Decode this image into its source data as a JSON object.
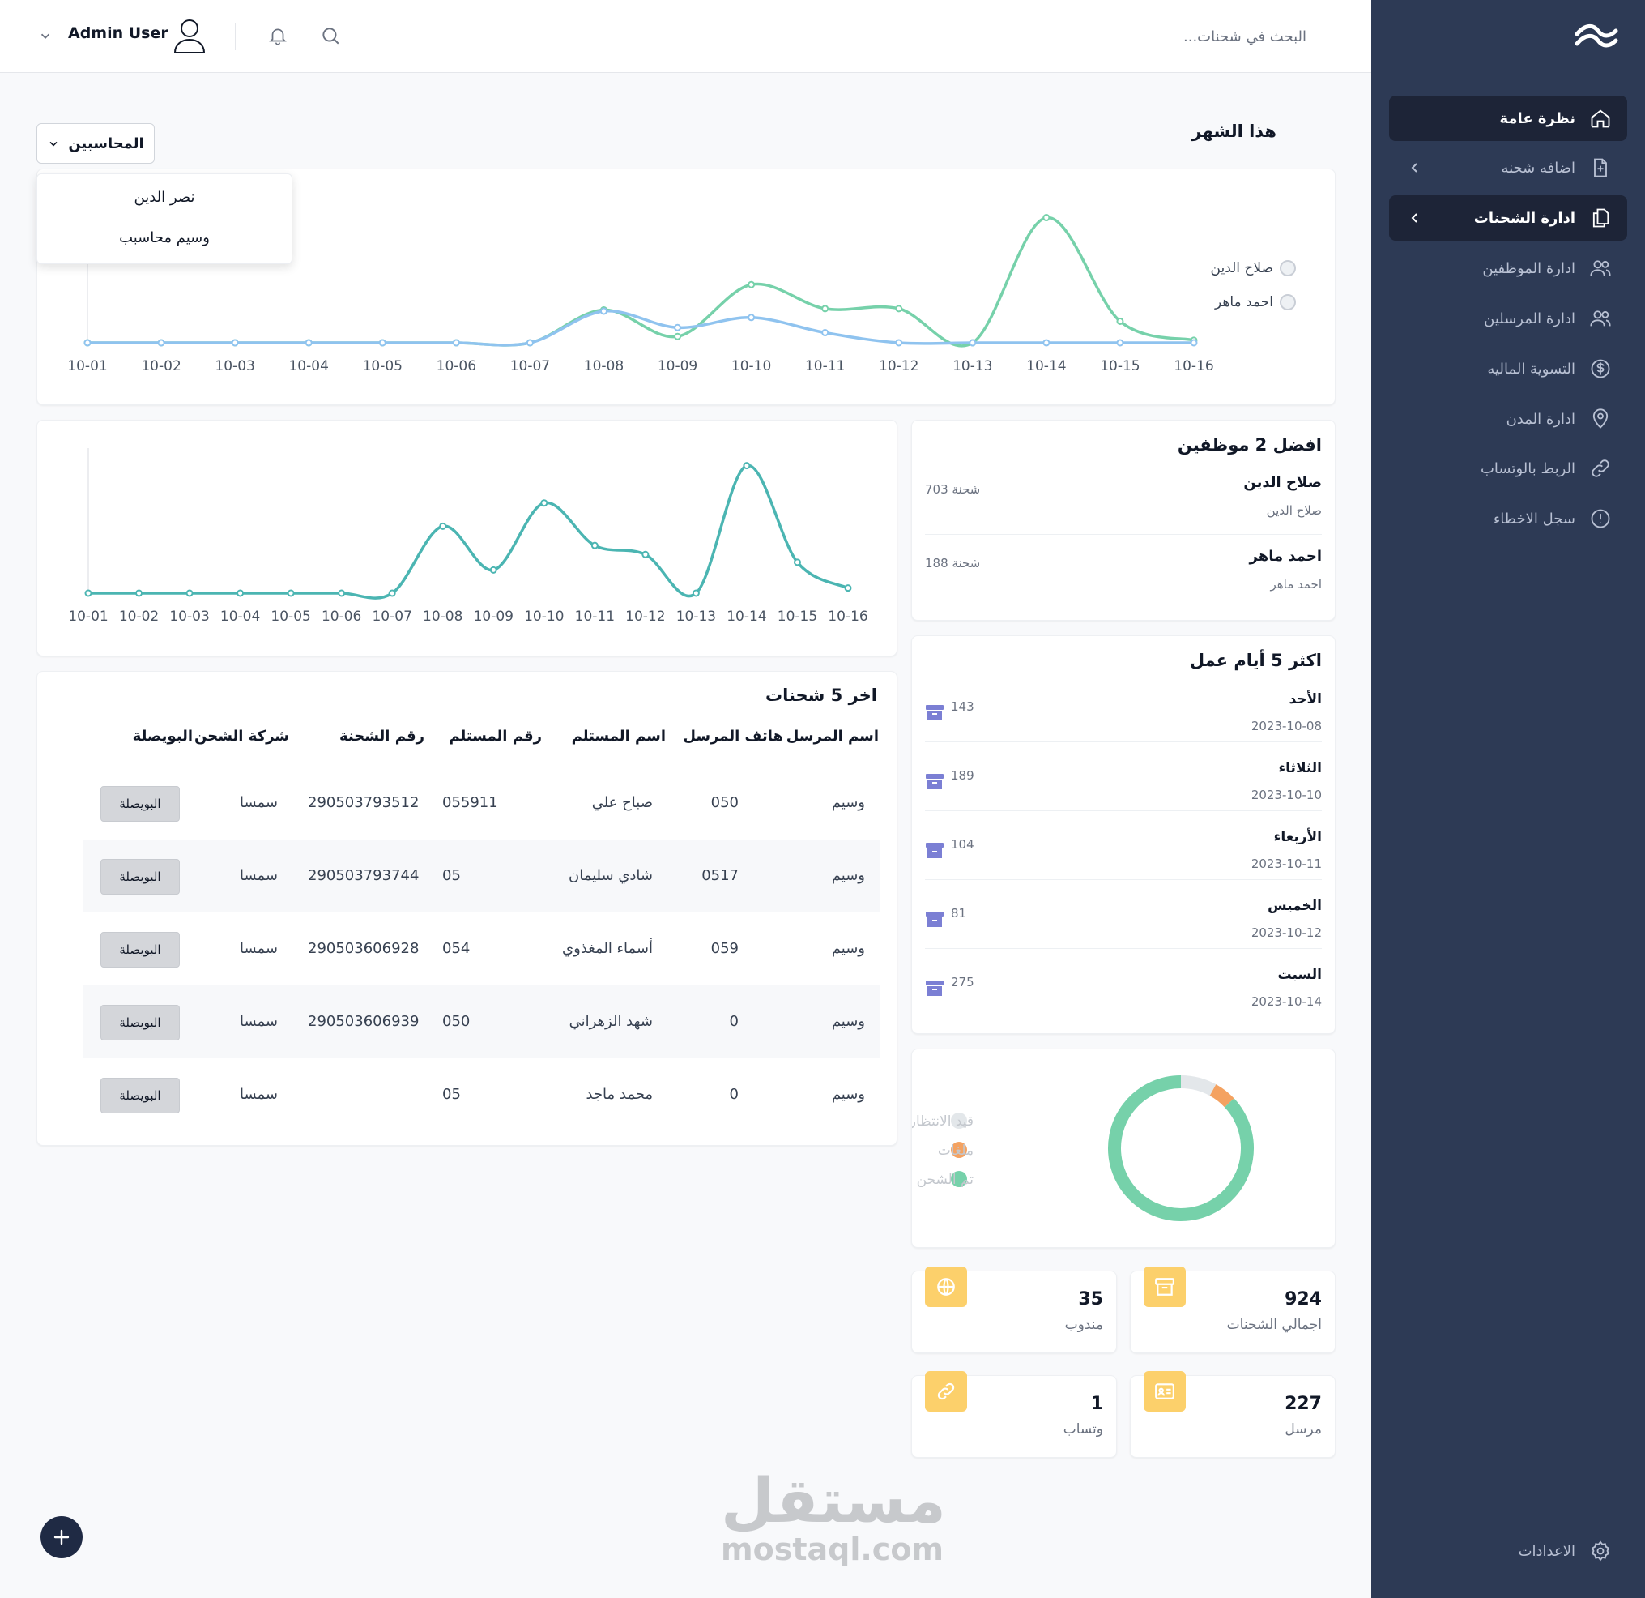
{
  "topbar": {
    "search_placeholder": "البحث في شحنات...",
    "user_name": "Admin User"
  },
  "sidebar": {
    "items": [
      {
        "label": "نظرة عامة",
        "icon": "home-icon",
        "active": true
      },
      {
        "label": "اضافه شحنه",
        "icon": "file-plus-icon"
      },
      {
        "label": "ادارة الشحنات",
        "icon": "documents-icon",
        "active": true
      },
      {
        "label": "ادارة الموظفين",
        "icon": "users-icon"
      },
      {
        "label": "ادارة المرسلين",
        "icon": "users-icon"
      },
      {
        "label": "التسوية الماليه",
        "icon": "dollar-icon"
      },
      {
        "label": "ادارة المدن",
        "icon": "location-icon"
      },
      {
        "label": "الربط بالوتساب",
        "icon": "link-icon"
      },
      {
        "label": "سجل الاخطاء",
        "icon": "alert-icon"
      }
    ],
    "settings_label": "الاعدادات"
  },
  "overview": {
    "section_title": "هذا الشهر",
    "filter_label": "المحاسبين",
    "filter_options": [
      "نصر الدين",
      "وسيم محاسبب"
    ]
  },
  "colors": {
    "sidebar_bg": "#2d3a55",
    "accent_green": "#76d1aa",
    "accent_blue": "#8fc3ef",
    "teal_line": "#4bb5b2",
    "pending": "#e3e7ea",
    "returns": "#f4a261",
    "stat_icon_bg": "#fcd06b"
  },
  "chart_data": [
    {
      "type": "line",
      "x": [
        "10-01",
        "10-02",
        "10-03",
        "10-04",
        "10-05",
        "10-06",
        "10-07",
        "10-08",
        "10-09",
        "10-10",
        "10-11",
        "10-12",
        "10-13",
        "10-14",
        "10-15",
        "10-16"
      ],
      "series": [
        {
          "name": "صلاح الدين",
          "color": "#76d1aa",
          "values": [
            0,
            0,
            0,
            0,
            0,
            0,
            0,
            26,
            5,
            46,
            27,
            27,
            0,
            99,
            17,
            2
          ]
        },
        {
          "name": "احمد ماهر",
          "color": "#8fc3ef",
          "values": [
            0,
            0,
            0,
            0,
            0,
            0,
            0,
            25,
            12,
            20,
            8,
            0,
            0,
            0,
            0,
            0
          ]
        }
      ],
      "legend": "right"
    },
    {
      "type": "line",
      "x": [
        "10-01",
        "10-02",
        "10-03",
        "10-04",
        "10-05",
        "10-06",
        "10-07",
        "10-08",
        "10-09",
        "10-10",
        "10-11",
        "10-12",
        "10-13",
        "10-14",
        "10-15",
        "10-16"
      ],
      "series": [
        {
          "color": "#4bb5b2",
          "values": [
            0,
            0,
            0,
            0,
            0,
            0,
            0,
            52,
            18,
            70,
            37,
            30,
            0,
            99,
            24,
            4
          ]
        }
      ]
    },
    {
      "type": "pie",
      "labels": [
        "قيد الانتظار",
        "ملغات",
        "تم الشحن"
      ],
      "values": [
        8,
        5,
        87
      ],
      "colors": [
        "#e3e7ea",
        "#f4a261",
        "#76d1aa"
      ]
    }
  ],
  "top_employees": {
    "title": "افضل 2 موظفين",
    "items": [
      {
        "name": "صلاح الدين",
        "sub": "صلاح الدين",
        "count": "703",
        "unit": "شحنة"
      },
      {
        "name": "احمد ماهر",
        "sub": "احمد ماهر",
        "count": "188",
        "unit": "شحنة"
      }
    ]
  },
  "top_days": {
    "title": "اكثر 5 أيام عمل",
    "items": [
      {
        "day": "الأحد",
        "date": "2023-10-08",
        "count": "143"
      },
      {
        "day": "الثلاثاء",
        "date": "2023-10-10",
        "count": "189"
      },
      {
        "day": "الأربعاء",
        "date": "2023-10-11",
        "count": "104"
      },
      {
        "day": "الخميس",
        "date": "2023-10-12",
        "count": "81"
      },
      {
        "day": "السبت",
        "date": "2023-10-14",
        "count": "275"
      }
    ]
  },
  "shipments": {
    "title": "اخر 5 شحنات",
    "headers": {
      "sender": "اسم المرسل",
      "sender_phone": "هاتف المرسل",
      "receiver": "اسم المستلم",
      "receiver_phone": "رقم المستلم",
      "number": "رقم الشحنة",
      "company": "شركة الشحن",
      "waybill": "البويصلة"
    },
    "rows": [
      {
        "sender": "وسيم",
        "sender_phone": "050",
        "receiver": "صباح علي",
        "receiver_phone": "055911",
        "number": "290503793512",
        "company": "سمسا",
        "waybill": "البويصلة"
      },
      {
        "sender": "وسيم",
        "sender_phone": "0517",
        "receiver": "شادي سليمان",
        "receiver_phone": "05",
        "number": "290503793744",
        "company": "سمسا",
        "waybill": "البويصلة"
      },
      {
        "sender": "وسيم",
        "sender_phone": "059",
        "receiver": "أسماء المغذوي",
        "receiver_phone": "054",
        "number": "290503606928",
        "company": "سمسا",
        "waybill": "البويصلة"
      },
      {
        "sender": "وسيم",
        "sender_phone": "0",
        "receiver": "شهد الزهراني",
        "receiver_phone": "050",
        "number": "290503606939",
        "company": "سمسا",
        "waybill": "البويصلة"
      },
      {
        "sender": "وسيم",
        "sender_phone": "0",
        "receiver": "محمد ماجد",
        "receiver_phone": "05",
        "number": "",
        "company": "سمسا",
        "waybill": "البويصلة"
      }
    ]
  },
  "stats": [
    {
      "value": "924",
      "label": "اجمالي الشحنات",
      "icon": "archive-icon"
    },
    {
      "value": "35",
      "label": "مندوب",
      "icon": "globe-icon"
    },
    {
      "value": "227",
      "label": "مرسل",
      "icon": "id-card-icon"
    },
    {
      "value": "1",
      "label": "وتساب",
      "icon": "link-icon"
    }
  ],
  "watermark": {
    "ar": "مستقل",
    "en": "mostaql.com"
  }
}
